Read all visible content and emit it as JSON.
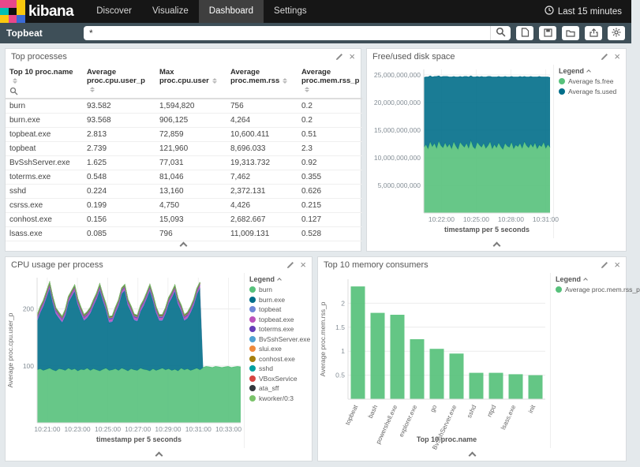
{
  "navbar": {
    "brand": "kibana",
    "items": [
      {
        "label": "Discover"
      },
      {
        "label": "Visualize"
      },
      {
        "label": "Dashboard"
      },
      {
        "label": "Settings"
      }
    ],
    "active_item": "Dashboard",
    "time_filter": "Last 15 minutes"
  },
  "querybar": {
    "dashboard_title": "Topbeat",
    "query_value": "*"
  },
  "legend_label": "Legend",
  "panels": {
    "top_processes": {
      "title": "Top processes",
      "table": {
        "columns": [
          {
            "label": "Top 10 proc.name"
          },
          {
            "label": "Average proc.cpu.user_p"
          },
          {
            "label": "Max proc.cpu.user"
          },
          {
            "label": "Average proc.mem.rss"
          },
          {
            "label": "Average proc.mem.rss_p"
          }
        ],
        "rows": [
          [
            "burn",
            "93.582",
            "1,594,820",
            "756",
            "0.2"
          ],
          [
            "burn.exe",
            "93.568",
            "906,125",
            "4,264",
            "0.2"
          ],
          [
            "topbeat.exe",
            "2.813",
            "72,859",
            "10,600.411",
            "0.51"
          ],
          [
            "topbeat",
            "2.739",
            "121,960",
            "8,696.033",
            "2.3"
          ],
          [
            "BvSshServer.exe",
            "1.625",
            "77,031",
            "19,313.732",
            "0.92"
          ],
          [
            "toterms.exe",
            "0.548",
            "81,046",
            "7,462",
            "0.355"
          ],
          [
            "sshd",
            "0.224",
            "13,160",
            "2,372.131",
            "0.626"
          ],
          [
            "csrss.exe",
            "0.199",
            "4,750",
            "4,426",
            "0.215"
          ],
          [
            "conhost.exe",
            "0.156",
            "15,093",
            "2,682.667",
            "0.127"
          ],
          [
            "lsass.exe",
            "0.085",
            "796",
            "11,009.131",
            "0.528"
          ]
        ]
      }
    },
    "disk": {
      "title": "Free/used disk space"
    },
    "cpu": {
      "title": "CPU usage per process"
    },
    "memory": {
      "title": "Top 10 memory consumers"
    }
  },
  "chart_data": [
    {
      "type": "stacked-area",
      "title": "Free/used disk space",
      "n": 60,
      "ylim": [
        0,
        26
      ],
      "unit_note": "values in billions (bytes)",
      "y_ticks": [
        {
          "v": 5,
          "label": "5,000,000,000"
        },
        {
          "v": 10,
          "label": "10,000,000,000"
        },
        {
          "v": 15,
          "label": "15,000,000,000"
        },
        {
          "v": 20,
          "label": "20,000,000,000"
        },
        {
          "v": 25,
          "label": "25,000,000,000"
        }
      ],
      "x_ticks": [
        {
          "f": 0.14,
          "label": "10:22:00"
        },
        {
          "f": 0.415,
          "label": "10:25:00"
        },
        {
          "f": 0.69,
          "label": "10:28:00"
        },
        {
          "f": 0.965,
          "label": "10:31:00"
        }
      ],
      "xlabel": "timestamp per 5 seconds",
      "series": [
        {
          "name": "Average fs.free",
          "color": "#57c17b",
          "values": [
            11.8,
            12.4,
            11.6,
            12.9,
            12.0,
            12.6,
            11.7,
            13.0,
            12.2,
            11.8,
            12.7,
            11.9,
            12.5,
            11.6,
            12.9,
            12.1,
            11.5,
            12.8,
            12.3,
            11.9,
            12.6,
            11.7,
            13.1,
            12.0,
            11.6,
            12.8,
            12.3,
            11.9,
            12.6,
            11.7,
            12.2,
            12.9,
            11.6,
            12.4,
            11.8,
            12.7,
            12.0,
            11.5,
            12.6,
            12.1,
            11.9,
            12.8,
            11.6,
            12.3,
            12.0,
            12.6,
            11.7,
            12.9,
            12.2,
            11.8,
            12.5,
            11.9,
            12.7,
            11.6,
            12.3,
            12.0,
            12.8,
            11.7,
            12.4,
            11.9
          ]
        },
        {
          "name": "Average fs.used",
          "color": "#016e8a",
          "values": [
            12.7,
            12.2,
            13.0,
            11.9,
            12.6,
            12.1,
            13.0,
            11.8,
            12.4,
            12.9,
            12.0,
            12.8,
            12.1,
            13.0,
            11.8,
            12.5,
            13.1,
            11.9,
            12.3,
            12.8,
            12.1,
            12.9,
            11.7,
            12.6,
            13.0,
            11.9,
            12.3,
            12.8,
            12.0,
            12.9,
            12.5,
            11.8,
            13.0,
            12.2,
            12.8,
            12.0,
            12.6,
            13.1,
            12.1,
            12.5,
            12.7,
            11.9,
            13.0,
            12.3,
            12.6,
            12.1,
            12.9,
            11.8,
            12.4,
            12.8,
            12.2,
            12.7,
            11.9,
            13.0,
            12.4,
            12.6,
            11.8,
            12.9,
            12.2,
            12.6
          ]
        }
      ]
    },
    {
      "type": "stacked-area",
      "title": "CPU usage per process",
      "n": 66,
      "cutoff": 53,
      "ylim": [
        0,
        255
      ],
      "y_ticks": [
        {
          "v": 100,
          "label": "100"
        },
        {
          "v": 200,
          "label": "200"
        }
      ],
      "x_ticks": [
        {
          "f": 0.05,
          "label": "10:21:00"
        },
        {
          "f": 0.198,
          "label": "10:23:00"
        },
        {
          "f": 0.347,
          "label": "10:25:00"
        },
        {
          "f": 0.495,
          "label": "10:27:00"
        },
        {
          "f": 0.643,
          "label": "10:29:00"
        },
        {
          "f": 0.792,
          "label": "10:31:00"
        },
        {
          "f": 0.94,
          "label": "10:33:00"
        }
      ],
      "ylabel": "Average proc.cpu.user_p",
      "xlabel": "timestamp per 5 seconds",
      "series": [
        {
          "name": "burn",
          "color": "#57c17b",
          "values": [
            93,
            95,
            92,
            94,
            96,
            93,
            91,
            95,
            94,
            92,
            96,
            93,
            95,
            91,
            94,
            93,
            96,
            92,
            95,
            93,
            91,
            94,
            96,
            92,
            93,
            95,
            92,
            96,
            94,
            91,
            95,
            93,
            92,
            96,
            94,
            93,
            91,
            95,
            92,
            94,
            96,
            93,
            95,
            92,
            94,
            91,
            96,
            93,
            95,
            92,
            94,
            96,
            93,
            97,
            99,
            98,
            97,
            99,
            98,
            97,
            98,
            99,
            97,
            98,
            99,
            98
          ]
        },
        {
          "name": "burn.exe",
          "color": "#016e8a",
          "values": [
            85,
            98,
            112,
            126,
            140,
            118,
            100,
            88,
            82,
            96,
            115,
            128,
            136,
            116,
            98,
            86,
            88,
            100,
            110,
            124,
            142,
            120,
            102,
            84,
            84,
            97,
            113,
            130,
            138,
            115,
            99,
            87,
            86,
            99,
            111,
            125,
            141,
            119,
            101,
            85,
            83,
            98,
            114,
            127,
            137,
            117,
            100,
            86,
            88,
            101,
            112,
            129,
            143,
            0,
            0,
            0,
            0,
            0,
            0,
            0,
            0,
            0,
            0,
            0,
            0,
            0
          ]
        },
        {
          "name": "topbeat",
          "color": "#6f87d8",
          "const": 1.5
        },
        {
          "name": "topbeat.exe",
          "color": "#bc52bc",
          "const": 4
        },
        {
          "name": "toterms.exe",
          "color": "#663db8",
          "const": 1.5
        },
        {
          "name": "BvSshServer.exe",
          "color": "#4ea1d3",
          "const": 1
        },
        {
          "name": "slui.exe",
          "color": "#ef8a3c",
          "const": 0.8
        },
        {
          "name": "conhost.exe",
          "color": "#a57f0e",
          "const": 0.6
        },
        {
          "name": "sshd",
          "color": "#00a0a0",
          "const": 0.6
        },
        {
          "name": "VBoxService",
          "color": "#d64541",
          "const": 0.5
        },
        {
          "name": "ata_sff",
          "color": "#33383d",
          "const": 0.3
        },
        {
          "name": "kworker/0:3",
          "color": "#7ac36a",
          "const": 0.3
        }
      ]
    },
    {
      "type": "bar",
      "title": "Top 10 memory consumers",
      "categories": [
        "topbeat",
        "bash",
        "powershell.exe",
        "explorer.exe",
        "go",
        "BvSshServer.exe",
        "sshd",
        "ntpd",
        "lsass.exe",
        "init"
      ],
      "values": [
        2.35,
        1.8,
        1.76,
        1.25,
        1.05,
        0.95,
        0.55,
        0.55,
        0.52,
        0.5
      ],
      "color": "#57c17b",
      "ylim": [
        0,
        2.5
      ],
      "y_ticks": [
        {
          "v": 0.5,
          "label": "0.5"
        },
        {
          "v": 1,
          "label": "1"
        },
        {
          "v": 1.5,
          "label": "1.5"
        },
        {
          "v": 2,
          "label": "2"
        }
      ],
      "ylabel": "Average proc.mem.rss_p",
      "xlabel": "Top 10 proc.name",
      "legend": [
        {
          "name": "Average proc.mem.rss_p",
          "color": "#57c17b"
        }
      ]
    }
  ]
}
